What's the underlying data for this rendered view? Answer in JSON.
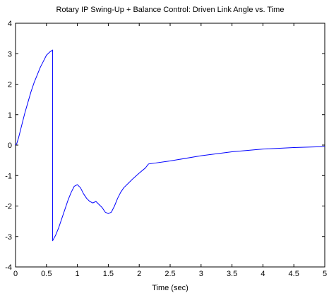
{
  "chart_data": {
    "type": "line",
    "title": "Rotary IP Swing-Up + Balance Control: Driven Link Angle vs. Time",
    "xlabel": "Time (sec)",
    "ylabel": "",
    "xlim": [
      0,
      5
    ],
    "ylim": [
      -4,
      4
    ],
    "xticks": [
      "0",
      "0.5",
      "1",
      "1.5",
      "2",
      "2.5",
      "3",
      "3.5",
      "4",
      "4.5",
      "5"
    ],
    "yticks": [
      "4",
      "3",
      "2",
      "1",
      "0",
      "-1",
      "-2",
      "-3",
      "-4"
    ],
    "grid": false,
    "legend": "none",
    "series": [
      {
        "color": "#0000ff",
        "x": [
          0,
          0.02,
          0.05,
          0.1,
          0.15,
          0.2,
          0.25,
          0.3,
          0.35,
          0.4,
          0.45,
          0.5,
          0.55,
          0.6,
          0.6,
          0.65,
          0.7,
          0.75,
          0.8,
          0.85,
          0.9,
          0.95,
          1.0,
          1.05,
          1.1,
          1.15,
          1.2,
          1.25,
          1.3,
          1.35,
          1.4,
          1.45,
          1.5,
          1.55,
          1.6,
          1.65,
          1.7,
          1.75,
          1.8,
          1.9,
          2.0,
          2.1,
          2.15,
          2.5,
          3.0,
          3.5,
          4.0,
          4.5,
          5.0
        ],
        "y": [
          0.0,
          0.05,
          0.25,
          0.65,
          1.05,
          1.4,
          1.75,
          2.05,
          2.3,
          2.55,
          2.75,
          2.95,
          3.05,
          3.12,
          -3.14,
          -2.95,
          -2.7,
          -2.4,
          -2.1,
          -1.8,
          -1.55,
          -1.35,
          -1.3,
          -1.4,
          -1.6,
          -1.75,
          -1.85,
          -1.9,
          -1.85,
          -1.95,
          -2.05,
          -2.2,
          -2.25,
          -2.2,
          -2.0,
          -1.75,
          -1.55,
          -1.4,
          -1.3,
          -1.1,
          -0.92,
          -0.75,
          -0.62,
          -0.52,
          -0.35,
          -0.22,
          -0.13,
          -0.08,
          -0.05
        ]
      }
    ]
  }
}
